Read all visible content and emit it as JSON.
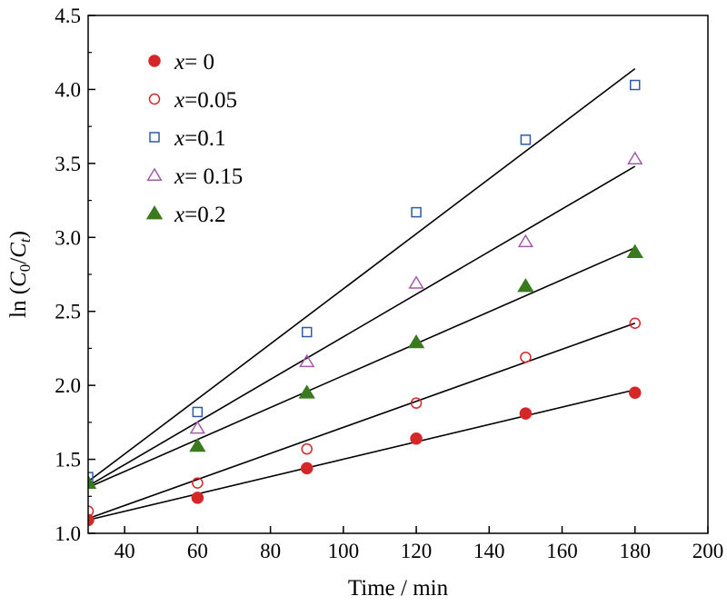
{
  "chart_data": {
    "type": "scatter",
    "xlabel": "Time / min",
    "ylabel": {
      "prefix": "ln (",
      "c0_base": "C",
      "c0_sub": "0",
      "slash": "/",
      "ct_base": "C",
      "ct_sub": "t",
      "suffix": ")"
    },
    "xlim": [
      30,
      200
    ],
    "ylim": [
      1.0,
      4.5
    ],
    "x_ticks": [
      40,
      60,
      80,
      100,
      120,
      140,
      160,
      180,
      200
    ],
    "x_tick_labels": [
      "40",
      "60",
      "80",
      "100",
      "120",
      "140",
      "160",
      "180",
      "200"
    ],
    "y_ticks": [
      1.0,
      1.5,
      2.0,
      2.5,
      3.0,
      3.5,
      4.0,
      4.5
    ],
    "y_tick_labels": [
      "1.0",
      "1.5",
      "2.0",
      "2.5",
      "3.0",
      "3.5",
      "4.0",
      "4.5"
    ],
    "grid": false,
    "legend_position": "top-left",
    "series": [
      {
        "legend_var": "x",
        "legend_value": "= 0",
        "marker": "filled-circle",
        "color": "#d62728",
        "x": [
          30,
          60,
          90,
          120,
          150,
          180
        ],
        "y": [
          1.09,
          1.24,
          1.44,
          1.64,
          1.81,
          1.95
        ],
        "fit": {
          "x": [
            30,
            180
          ],
          "y": [
            1.09,
            1.97
          ]
        }
      },
      {
        "legend_var": "x",
        "legend_value": "=0.05",
        "marker": "open-circle",
        "color": "#d62728",
        "x": [
          30,
          60,
          90,
          120,
          150,
          180
        ],
        "y": [
          1.15,
          1.34,
          1.57,
          1.88,
          2.19,
          2.42
        ],
        "fit": {
          "x": [
            30,
            180
          ],
          "y": [
            1.1,
            2.42
          ]
        }
      },
      {
        "legend_var": "x",
        "legend_value": "=0.1",
        "marker": "open-square",
        "color": "#2e5aa8",
        "x": [
          30,
          60,
          90,
          120,
          150,
          180
        ],
        "y": [
          1.38,
          1.82,
          2.36,
          3.17,
          3.66,
          4.03
        ],
        "fit": {
          "x": [
            30,
            180
          ],
          "y": [
            1.35,
            4.14
          ]
        }
      },
      {
        "legend_var": "x",
        "legend_value": "= 0.15",
        "marker": "open-triangle",
        "color": "#a35ca8",
        "x": [
          30,
          60,
          90,
          120,
          150,
          180
        ],
        "y": [
          1.34,
          1.71,
          2.16,
          2.69,
          2.97,
          3.53
        ],
        "fit": {
          "x": [
            30,
            180
          ],
          "y": [
            1.32,
            3.48
          ]
        }
      },
      {
        "legend_var": "x",
        "legend_value": "=0.2",
        "marker": "filled-triangle",
        "color": "#3a7a1e",
        "x": [
          30,
          60,
          90,
          120,
          150,
          180
        ],
        "y": [
          1.34,
          1.59,
          1.95,
          2.29,
          2.67,
          2.9
        ],
        "fit": {
          "x": [
            30,
            180
          ],
          "y": [
            1.31,
            2.93
          ]
        }
      }
    ]
  }
}
